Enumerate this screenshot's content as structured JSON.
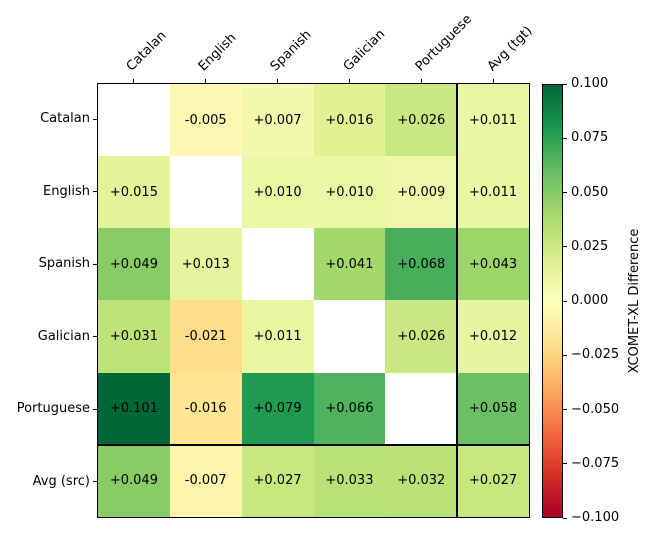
{
  "chart_data": {
    "type": "heatmap",
    "title": "",
    "x_axis": {
      "position": "top",
      "rotation_deg": 45,
      "tick_labels": [
        "Catalan",
        "English",
        "Spanish",
        "Galician",
        "Portuguese",
        "Avg (tgt)"
      ]
    },
    "y_axis": {
      "tick_labels": [
        "Catalan",
        "English",
        "Spanish",
        "Galician",
        "Portuguese",
        "Avg (src)"
      ]
    },
    "values": [
      [
        null,
        -0.005,
        0.007,
        0.016,
        0.026,
        0.011
      ],
      [
        0.015,
        null,
        0.01,
        0.01,
        0.009,
        0.011
      ],
      [
        0.049,
        0.013,
        null,
        0.041,
        0.068,
        0.043
      ],
      [
        0.031,
        -0.021,
        0.011,
        null,
        0.026,
        0.012
      ],
      [
        0.101,
        -0.016,
        0.079,
        0.066,
        null,
        0.058
      ],
      [
        0.049,
        -0.007,
        0.027,
        0.033,
        0.032,
        0.027
      ]
    ],
    "cell_labels": [
      [
        "",
        "-0.005",
        "+0.007",
        "+0.016",
        "+0.026",
        "+0.011"
      ],
      [
        "+0.015",
        "",
        "+0.010",
        "+0.010",
        "+0.009",
        "+0.011"
      ],
      [
        "+0.049",
        "+0.013",
        "",
        "+0.041",
        "+0.068",
        "+0.043"
      ],
      [
        "+0.031",
        "-0.021",
        "+0.011",
        "",
        "+0.026",
        "+0.012"
      ],
      [
        "+0.101",
        "-0.016",
        "+0.079",
        "+0.066",
        "",
        "+0.058"
      ],
      [
        "+0.049",
        "-0.007",
        "+0.027",
        "+0.033",
        "+0.032",
        "+0.027"
      ]
    ],
    "vmin": -0.1,
    "vmax": 0.1,
    "diagonal_masked": true,
    "separators": {
      "before_last_column": true,
      "before_last_row": true
    },
    "colormap": {
      "name": "RdYlGn",
      "stops": [
        "#a50026",
        "#d73027",
        "#f46d43",
        "#fdae61",
        "#fee08b",
        "#ffffbf",
        "#d9ef8b",
        "#a6d96a",
        "#66bd63",
        "#1a9850",
        "#006837"
      ]
    },
    "colorbar": {
      "position": "right",
      "label": "XCOMET-XL Difference",
      "tick_labels": [
        "0.100",
        "0.075",
        "0.050",
        "0.025",
        "0.000",
        "−0.025",
        "−0.050",
        "−0.075",
        "−0.100"
      ]
    },
    "cell_text_color": "#000000",
    "masked_cell_color": "#ffffff"
  }
}
